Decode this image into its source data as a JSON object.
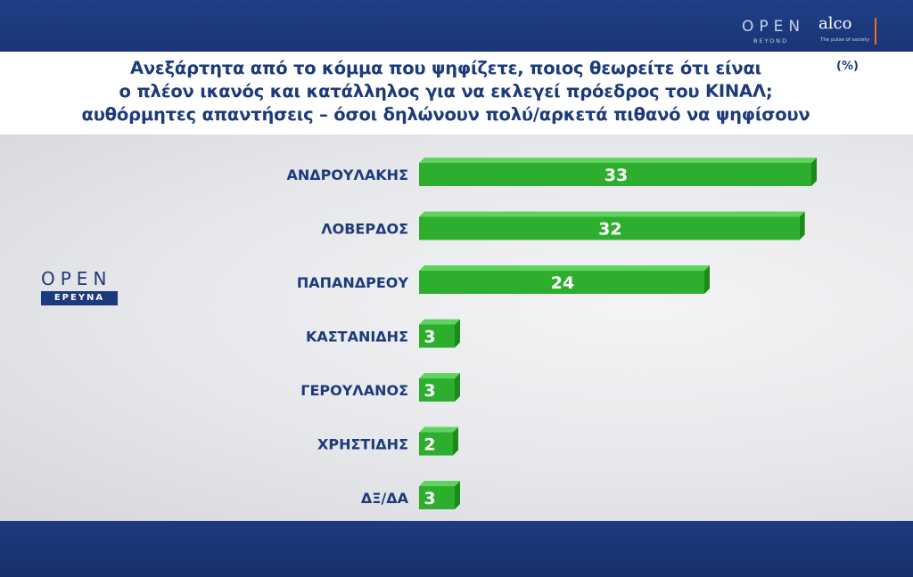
{
  "header": {
    "logo_open": "OPEN",
    "logo_open_sub": "BEYOND",
    "logo_alco": "alco",
    "logo_alco_sub": "The pulse of society"
  },
  "title_lines": [
    "Ανεξάρτητα από το κόμμα που ψηφίζετε, ποιος θεωρείτε ότι είναι",
    "ο πλέον ικανός και κατάλληλος για να εκλεγεί πρόεδρος του ΚΙΝΑΛ;",
    "αυθόρμητες απαντήσεις – όσοι δηλώνουν πολύ/αρκετά πιθανό να ψηφίσουν"
  ],
  "unit": "(%)",
  "side_logo": {
    "open": "OPEN",
    "ereyna": "ΕΡΕΥΝΑ"
  },
  "colors": {
    "bar": "#2eae2e",
    "bar_top": "#5fd35f",
    "bar_side": "#1b8a1b",
    "navy": "#1c3a7c"
  },
  "chart_data": {
    "type": "bar",
    "orientation": "horizontal",
    "categories": [
      "ΑΝΔΡΟΥΛΑΚΗΣ",
      "ΛΟΒΕΡΔΟΣ",
      "ΠΑΠΑΝΔΡΕΟΥ",
      "ΚΑΣΤΑΝΙΔΗΣ",
      "ΓΕΡΟΥΛΑΝΟΣ",
      "ΧΡΗΣΤΙΔΗΣ",
      "ΔΞ/ΔΑ"
    ],
    "values": [
      33,
      32,
      24,
      3,
      3,
      2,
      3
    ],
    "title": "Ανεξάρτητα από το κόμμα που ψηφίζετε, ποιος θεωρείτε ότι είναι ο πλέον ικανός και κατάλληλος για να εκλεγεί πρόεδρος του ΚΙΝΑΛ; αυθόρμητες απαντήσεις – όσοι δηλώνουν πολύ/αρκετά πιθανό να ψηφίσουν",
    "xlim": [
      0,
      33
    ],
    "data_labels": true,
    "grid": false
  }
}
